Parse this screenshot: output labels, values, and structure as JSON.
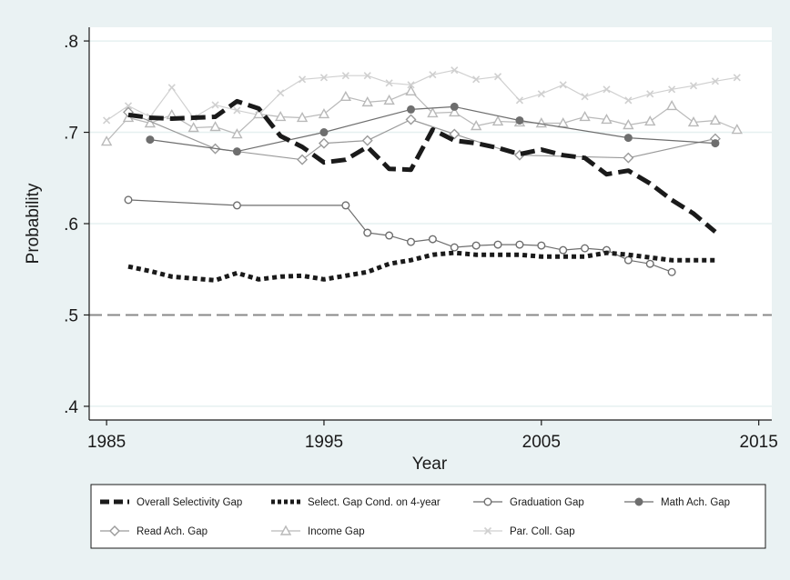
{
  "chart_data": {
    "type": "line",
    "xlabel": "Year",
    "ylabel": "Probability",
    "xlim": [
      1984.2,
      2015.6
    ],
    "ylim": [
      0.385,
      0.815
    ],
    "x_ticks": [
      1985,
      1995,
      2005,
      2015
    ],
    "y_ticks": [
      0.4,
      0.5,
      0.6,
      0.7,
      0.8
    ],
    "y_tick_labels": [
      ".4",
      ".5",
      ".6",
      ".7",
      ".8"
    ],
    "grid": true,
    "reference_line": 0.5,
    "legend_position": "bottom",
    "series": [
      {
        "name": "Overall Selectivity Gap",
        "color": "#1a1a1a",
        "style": "long-dash",
        "marker": "none",
        "x": [
          1986,
          1987,
          1988,
          1989,
          1990,
          1991,
          1992,
          1993,
          1994,
          1995,
          1996,
          1997,
          1998,
          1999,
          2000,
          2001,
          2002,
          2003,
          2004,
          2005,
          2006,
          2007,
          2008,
          2009,
          2010,
          2011,
          2012,
          2013
        ],
        "y": [
          0.719,
          0.716,
          0.715,
          0.716,
          0.717,
          0.734,
          0.726,
          0.696,
          0.684,
          0.667,
          0.67,
          0.684,
          0.66,
          0.659,
          0.703,
          0.691,
          0.688,
          0.683,
          0.676,
          0.681,
          0.675,
          0.672,
          0.654,
          0.658,
          0.644,
          0.626,
          0.611,
          0.591
        ]
      },
      {
        "name": "Select. Gap Cond. on 4-year",
        "color": "#1a1a1a",
        "style": "dotted",
        "marker": "none",
        "x": [
          1986,
          1987,
          1988,
          1989,
          1990,
          1991,
          1992,
          1993,
          1994,
          1995,
          1996,
          1997,
          1998,
          1999,
          2000,
          2001,
          2002,
          2003,
          2004,
          2005,
          2006,
          2007,
          2008,
          2009,
          2010,
          2011,
          2012,
          2013
        ],
        "y": [
          0.553,
          0.548,
          0.542,
          0.54,
          0.538,
          0.546,
          0.539,
          0.542,
          0.543,
          0.539,
          0.543,
          0.547,
          0.556,
          0.56,
          0.566,
          0.568,
          0.566,
          0.566,
          0.566,
          0.564,
          0.564,
          0.564,
          0.568,
          0.566,
          0.563,
          0.56,
          0.56,
          0.56
        ]
      },
      {
        "name": "Graduation Gap",
        "color": "#6e6e6e",
        "style": "solid",
        "marker": "hollow-circle",
        "x": [
          1986,
          1991,
          1996,
          1997,
          1998,
          1999,
          2000,
          2001,
          2002,
          2003,
          2004,
          2005,
          2006,
          2007,
          2008,
          2009,
          2010,
          2011
        ],
        "y": [
          0.626,
          0.62,
          0.62,
          0.59,
          0.587,
          0.58,
          0.583,
          0.574,
          0.576,
          0.577,
          0.577,
          0.576,
          0.571,
          0.573,
          0.571,
          0.56,
          0.556,
          0.547
        ]
      },
      {
        "name": "Math Ach. Gap",
        "color": "#6e6e6e",
        "style": "solid",
        "marker": "filled-circle",
        "x": [
          1987,
          1991,
          1995,
          1999,
          2001,
          2004,
          2009,
          2013
        ],
        "y": [
          0.692,
          0.679,
          0.7,
          0.725,
          0.728,
          0.713,
          0.694,
          0.688
        ]
      },
      {
        "name": "Read Ach. Gap",
        "color": "#9a9a9a",
        "style": "solid",
        "marker": "hollow-diamond",
        "x": [
          1986,
          1990,
          1994,
          1995,
          1997,
          1999,
          2001,
          2004,
          2009,
          2013
        ],
        "y": [
          0.722,
          0.682,
          0.67,
          0.688,
          0.691,
          0.714,
          0.698,
          0.675,
          0.672,
          0.693
        ]
      },
      {
        "name": "Income Gap",
        "color": "#b9b9b9",
        "style": "solid",
        "marker": "hollow-triangle",
        "x": [
          1985,
          1986,
          1987,
          1988,
          1989,
          1990,
          1991,
          1992,
          1993,
          1994,
          1995,
          1996,
          1997,
          1998,
          1999,
          2000,
          2001,
          2002,
          2003,
          2004,
          2005,
          2006,
          2007,
          2008,
          2009,
          2010,
          2011,
          2012,
          2013,
          2014
        ],
        "y": [
          0.69,
          0.716,
          0.71,
          0.719,
          0.705,
          0.706,
          0.698,
          0.72,
          0.717,
          0.716,
          0.72,
          0.739,
          0.733,
          0.735,
          0.745,
          0.721,
          0.722,
          0.707,
          0.712,
          0.711,
          0.71,
          0.71,
          0.717,
          0.714,
          0.708,
          0.712,
          0.729,
          0.711,
          0.713,
          0.703
        ]
      },
      {
        "name": "Par. Coll. Gap",
        "color": "#d0d0d0",
        "style": "solid",
        "marker": "x",
        "x": [
          1985,
          1986,
          1987,
          1988,
          1989,
          1990,
          1991,
          1992,
          1993,
          1994,
          1995,
          1996,
          1997,
          1998,
          1999,
          2000,
          2001,
          2002,
          2003,
          2004,
          2005,
          2006,
          2007,
          2008,
          2009,
          2010,
          2011,
          2012,
          2013,
          2014
        ],
        "y": [
          0.713,
          0.729,
          0.717,
          0.749,
          0.716,
          0.73,
          0.724,
          0.719,
          0.743,
          0.758,
          0.76,
          0.762,
          0.762,
          0.754,
          0.752,
          0.763,
          0.768,
          0.758,
          0.761,
          0.735,
          0.742,
          0.752,
          0.739,
          0.747,
          0.735,
          0.742,
          0.747,
          0.751,
          0.756,
          0.76
        ]
      }
    ]
  }
}
